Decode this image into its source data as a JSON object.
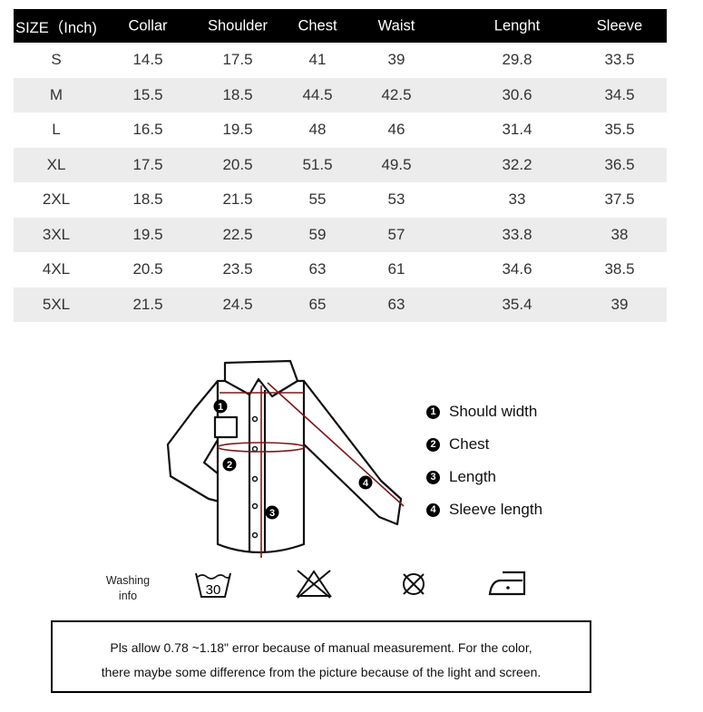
{
  "table": {
    "headers": [
      "SIZE（Inch)",
      "Collar",
      "Shoulder",
      "Chest",
      "Waist",
      "Lenght",
      "Sleeve"
    ],
    "rows": [
      [
        "S",
        "14.5",
        "17.5",
        "41",
        "39",
        "29.8",
        "33.5"
      ],
      [
        "M",
        "15.5",
        "18.5",
        "44.5",
        "42.5",
        "30.6",
        "34.5"
      ],
      [
        "L",
        "16.5",
        "19.5",
        "48",
        "46",
        "31.4",
        "35.5"
      ],
      [
        "XL",
        "17.5",
        "20.5",
        "51.5",
        "49.5",
        "32.2",
        "36.5"
      ],
      [
        "2XL",
        "18.5",
        "21.5",
        "55",
        "53",
        "33",
        "37.5"
      ],
      [
        "3XL",
        "19.5",
        "22.5",
        "59",
        "57",
        "33.8",
        "38"
      ],
      [
        "4XL",
        "20.5",
        "23.5",
        "63",
        "61",
        "34.6",
        "38.5"
      ],
      [
        "5XL",
        "21.5",
        "24.5",
        "65",
        "63",
        "35.4",
        "39"
      ]
    ]
  },
  "legend": [
    {
      "num": "1",
      "label": "Should width"
    },
    {
      "num": "2",
      "label": "Chest"
    },
    {
      "num": "3",
      "label": "Length"
    },
    {
      "num": "4",
      "label": "Sleeve length"
    }
  ],
  "washing": {
    "label_line1": "Washing",
    "label_line2": "info",
    "temp": "30",
    "icons": [
      "wash-30-icon",
      "do-not-bleach-icon",
      "do-not-tumble-dry-icon",
      "iron-low-icon"
    ]
  },
  "note": {
    "line1": "Pls allow 0.78 ~1.18\" error because of manual measurement. For the color,",
    "line2": "there maybe some difference from the picture because of the light and screen."
  },
  "colors": {
    "header_bg": "#000000",
    "alt_row": "#ececec",
    "measure_line": "#7a1a1a"
  }
}
